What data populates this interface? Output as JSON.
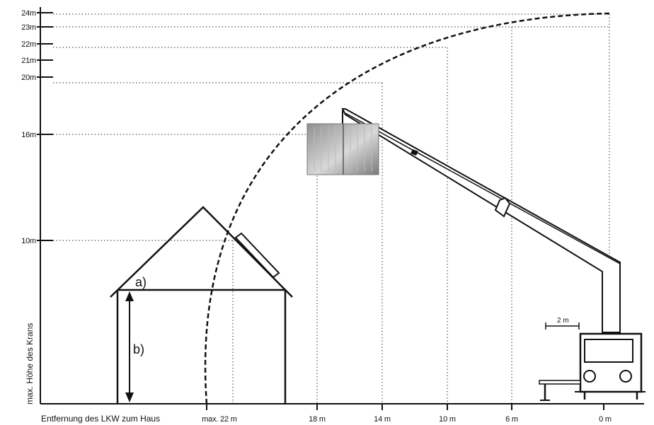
{
  "height_ticks": [
    {
      "value": 24,
      "label": "24m"
    },
    {
      "value": 23,
      "label": "23m"
    },
    {
      "value": 22,
      "label": "22m"
    },
    {
      "value": 21,
      "label": "21m"
    },
    {
      "value": 20,
      "label": "20m"
    },
    {
      "value": 16,
      "label": "16m"
    },
    {
      "value": 10,
      "label": "10m"
    }
  ],
  "distance_ticks": [
    {
      "value": 22,
      "label": "max. 22 m"
    },
    {
      "value": 18,
      "label": "18 m"
    },
    {
      "value": 14,
      "label": "14 m"
    },
    {
      "value": 10,
      "label": "10 m"
    },
    {
      "value": 6,
      "label": "6 m"
    },
    {
      "value": 0,
      "label": "0 m"
    }
  ],
  "y_axis_title": "max. Höhe des Krans",
  "x_axis_title": "Entfernung des LKW zum Haus",
  "house_labels": {
    "roof": "a)",
    "wall": "b)"
  },
  "scale_bar": "2 m",
  "colors": {
    "ink": "#111111",
    "guide": "#555555",
    "panel": "#a9a9a9"
  }
}
